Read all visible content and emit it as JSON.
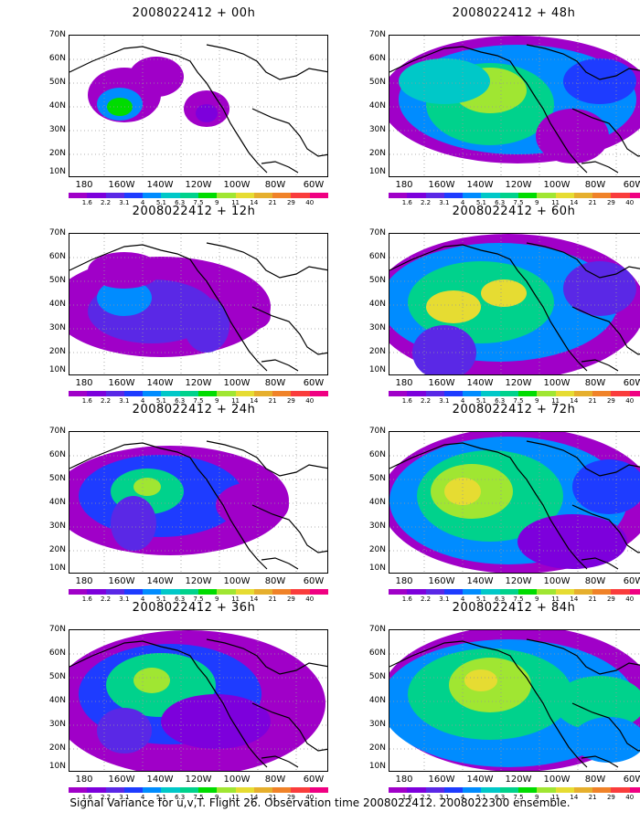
{
  "caption": "Signal Variance for u,v,T. Flight 26. Observation time 2008022412. 2008022300 ensemble.",
  "colorbar": {
    "labels": [
      "1.6",
      "2.2",
      "3.1",
      "4",
      "5.1",
      "6.3",
      "7.5",
      "9",
      "11",
      "14",
      "21",
      "29",
      "40"
    ],
    "colors": [
      "#a000c8",
      "#7d00dc",
      "#5a28e6",
      "#1e3cff",
      "#008cff",
      "#00c8c8",
      "#00d28c",
      "#00dc00",
      "#a0e632",
      "#e6dc32",
      "#e6af2d",
      "#f08228",
      "#fa3c3c",
      "#f00082"
    ]
  },
  "axes": {
    "lat_ticks": [
      "70N",
      "60N",
      "50N",
      "40N",
      "30N",
      "20N",
      "10N"
    ],
    "lon_ticks": [
      "180",
      "160W",
      "140W",
      "120W",
      "100W",
      "80W",
      "60W"
    ]
  },
  "chart_data": [
    {
      "type": "heatmap",
      "title": "2008022412 + 00h",
      "domain": "lon 170E-60W, lat 10N-70N",
      "values_note": "low variance, maxima near 165W 42N"
    },
    {
      "type": "heatmap",
      "title": "2008022412 + 48h",
      "domain": "lon 170E-60W, lat 10N-70N",
      "values_note": "maximum near 145W 47N"
    },
    {
      "type": "heatmap",
      "title": "2008022412 + 12h",
      "domain": "lon 170E-60W, lat 10N-70N",
      "values_note": "broad low-level signal"
    },
    {
      "type": "heatmap",
      "title": "2008022412 + 60h",
      "domain": "lon 170E-60W, lat 10N-70N",
      "values_note": "maxima near 155W 45N and 140W 50N"
    },
    {
      "type": "heatmap",
      "title": "2008022412 + 24h",
      "domain": "lon 170E-60W, lat 10N-70N",
      "values_note": "maxima near 150W 45N"
    },
    {
      "type": "heatmap",
      "title": "2008022412 + 72h",
      "domain": "lon 170E-60W, lat 10N-70N",
      "values_note": "maximum near 145W 45N"
    },
    {
      "type": "heatmap",
      "title": "2008022412 + 36h",
      "domain": "lon 170E-60W, lat 10N-70N",
      "values_note": "maximum near 140W 48N"
    },
    {
      "type": "heatmap",
      "title": "2008022412 + 84h",
      "domain": "lon 170E-60W, lat 10N-70N",
      "values_note": "maximum near 145W 50N"
    }
  ]
}
